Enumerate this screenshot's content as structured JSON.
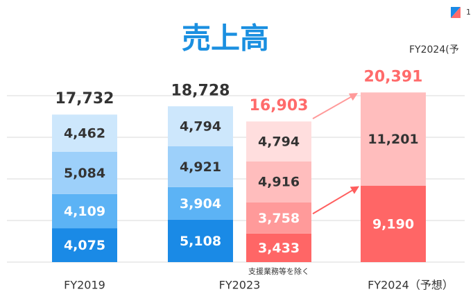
{
  "chart_data": {
    "type": "stacked_bar",
    "title": "売上高",
    "categories": [
      "FY2019",
      "FY2023",
      null,
      "FY2024（予想）"
    ],
    "series": [
      {
        "colors": [
          "#1a8ae6",
          "#1a8ae6",
          "#ff6666",
          "#ff6666"
        ],
        "text_colors": [
          "#ffffff",
          "#ffffff",
          "#ffffff",
          "#ffffff"
        ],
        "values": [
          4075,
          5108,
          3433,
          9190
        ]
      },
      {
        "colors": [
          "#5cb3f5",
          "#5cb3f5",
          "#ff9a9a",
          "#ffbdbd"
        ],
        "text_colors": [
          "#ffffff",
          "#ffffff",
          "#ffffff",
          "#333333"
        ],
        "values": [
          4109,
          3904,
          3758,
          11201
        ]
      },
      {
        "colors": [
          "#9dd0fa",
          "#9dd0fa",
          "#ffbdbd",
          null
        ],
        "text_colors": [
          "#333333",
          "#333333",
          "#333333",
          null
        ],
        "values": [
          5084,
          4921,
          4916,
          null
        ]
      },
      {
        "colors": [
          "#cde7fc",
          "#cde7fc",
          "#ffdede",
          null
        ],
        "text_colors": [
          "#333333",
          "#333333",
          "#333333",
          null
        ],
        "values": [
          4462,
          4794,
          4794,
          null
        ]
      }
    ],
    "totals": [
      17732,
      18728,
      16903,
      20391
    ],
    "totals_labels": [
      "17,732",
      "18,728",
      "16,903",
      "20,391"
    ],
    "totals_colors": [
      "#333333",
      "#333333",
      "#ff6b6b",
      "#ff6b6b"
    ],
    "value_labels": [
      [
        "4,075",
        "5,108",
        "3,433",
        "9,190"
      ],
      [
        "4,109",
        "3,904",
        "3,758",
        "11,201"
      ],
      [
        "5,084",
        "4,921",
        "4,916",
        null
      ],
      [
        "4,462",
        "4,794",
        "4,794",
        null
      ]
    ],
    "ylim": [
      0,
      20000
    ],
    "yticks": [
      0,
      5000,
      10000,
      15000,
      20000
    ],
    "grid": true,
    "annotation": "支援業務等を除く",
    "corner_label": "FY2024(予",
    "legend_mark": "1"
  }
}
